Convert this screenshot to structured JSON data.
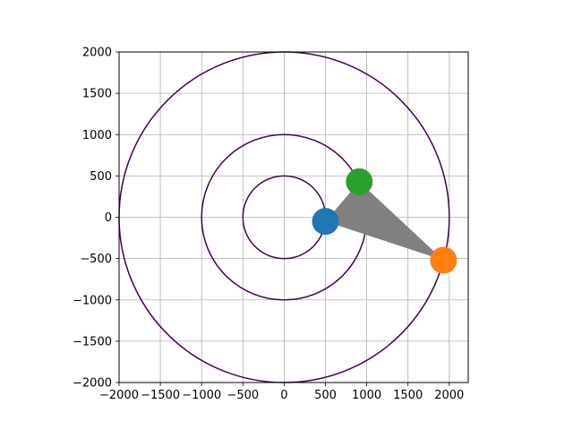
{
  "chart_data": {
    "type": "scatter",
    "title": "",
    "xlabel": "",
    "ylabel": "",
    "xlim": [
      -2000,
      2230
    ],
    "ylim": [
      -2000,
      2000
    ],
    "grid": true,
    "aspect": "equal",
    "x_ticks": [
      -2000,
      -1500,
      -1000,
      -500,
      0,
      500,
      1000,
      1500,
      2000
    ],
    "x_tick_labels": [
      "−2000",
      "−1500",
      "−1000",
      "−500",
      "0",
      "500",
      "1000",
      "1500",
      "2000"
    ],
    "y_ticks": [
      2000,
      1500,
      1000,
      500,
      0,
      -500,
      -1000,
      -1500,
      -2000
    ],
    "y_tick_labels": [
      "2000",
      "1500",
      "1000",
      "500",
      "0",
      "−500",
      "−1000",
      "−1500",
      "−2000"
    ],
    "circles": [
      {
        "name": "circle-r500",
        "center": [
          0,
          0
        ],
        "radius": 500,
        "color": "#440154"
      },
      {
        "name": "circle-r1000",
        "center": [
          0,
          0
        ],
        "radius": 1000,
        "color": "#440154"
      },
      {
        "name": "circle-r2000",
        "center": [
          0,
          0
        ],
        "radius": 2000,
        "color": "#440154"
      }
    ],
    "triangle": {
      "vertices": [
        [
          500,
          -50
        ],
        [
          910,
          430
        ],
        [
          1930,
          -520
        ]
      ],
      "color": "#808080"
    },
    "points": [
      {
        "name": "point-blue",
        "x": 500,
        "y": -50,
        "color": "#1f77b4"
      },
      {
        "name": "point-green",
        "x": 910,
        "y": 430,
        "color": "#2ca02c"
      },
      {
        "name": "point-orange",
        "x": 1930,
        "y": -520,
        "color": "#ff7f0e"
      }
    ]
  }
}
